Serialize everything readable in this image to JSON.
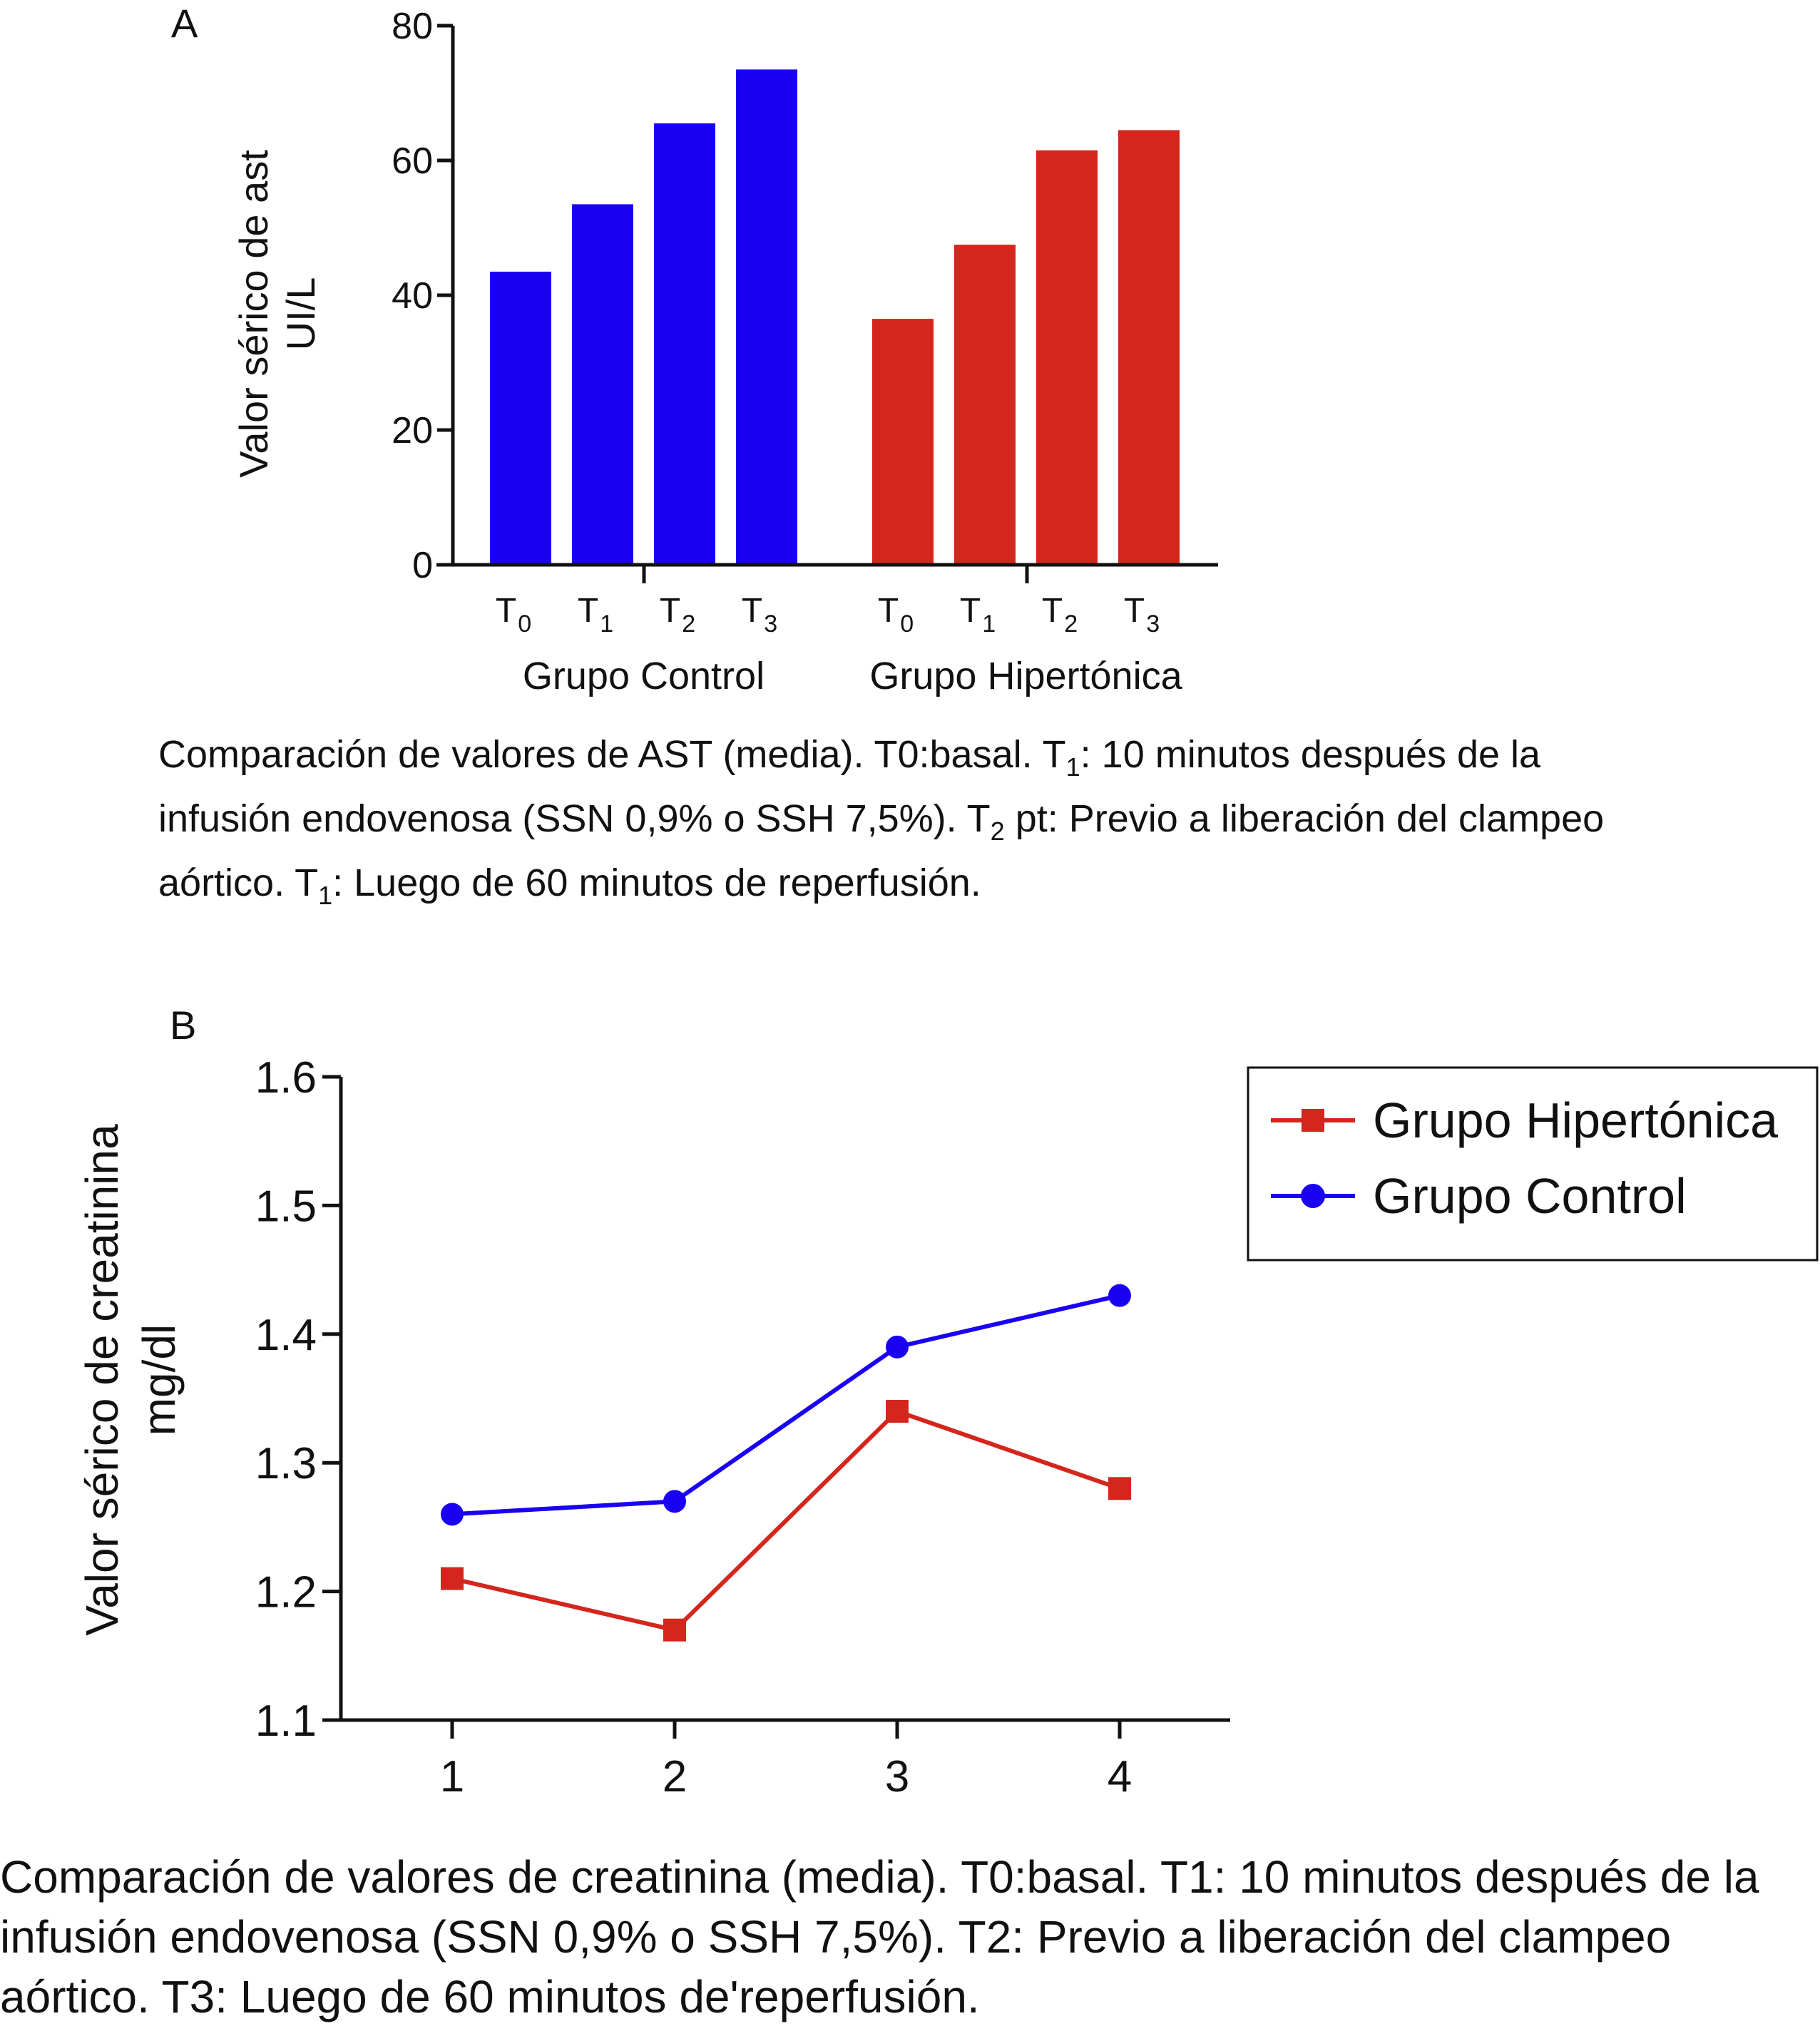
{
  "chart_data": [
    {
      "type": "bar",
      "panel_label": "A",
      "ylabel_line1": "Valor sérico de ast",
      "ylabel_line2": "UI/L",
      "ylim": [
        0,
        80
      ],
      "yticks": [
        "0",
        "20",
        "40",
        "60",
        "80"
      ],
      "groups": [
        {
          "label": "Grupo Control",
          "color": "#1a00f2",
          "categories": [
            {
              "base": "T",
              "sub": "0"
            },
            {
              "base": "T",
              "sub": "1"
            },
            {
              "base": "T",
              "sub": "2"
            },
            {
              "base": "T",
              "sub": "3"
            }
          ],
          "values": [
            43.5,
            53.5,
            65.5,
            73.5
          ]
        },
        {
          "label": "Grupo Hipertónica",
          "color": "#d4261c",
          "categories": [
            {
              "base": "T",
              "sub": "0"
            },
            {
              "base": "T",
              "sub": "1"
            },
            {
              "base": "T",
              "sub": "2"
            },
            {
              "base": "T",
              "sub": "3"
            }
          ],
          "values": [
            36.5,
            47.5,
            61.5,
            64.5
          ]
        }
      ]
    },
    {
      "type": "line",
      "panel_label": "B",
      "ylabel_line1": "Valor sérico de creatinina",
      "ylabel_line2": "mg/dl",
      "x": [
        1,
        2,
        3,
        4
      ],
      "xticks": [
        "1",
        "2",
        "3",
        "4"
      ],
      "ylim": [
        1.1,
        1.6
      ],
      "yticks": [
        "1.1",
        "1.2",
        "1.3",
        "1.4",
        "1.5",
        "1.6"
      ],
      "legend_position": "top-right",
      "series": [
        {
          "name": "Grupo Hipertónica",
          "marker": "square",
          "color": "#d4261c",
          "values": [
            1.21,
            1.17,
            1.34,
            1.28
          ]
        },
        {
          "name": "Grupo Control",
          "marker": "circle",
          "color": "#1a00f2",
          "values": [
            1.26,
            1.27,
            1.39,
            1.43
          ]
        }
      ]
    }
  ],
  "captions": {
    "a": {
      "line1_a": "Comparación de valores de AST (media). T0:basal. T",
      "line1_sub": "1",
      "line1_b": ": 10 minutos después de la",
      "line2_a": "infusión endovenosa (SSN 0,9% o SSH 7,5%). T",
      "line2_sub": "2",
      "line2_b": " pt: Previo a liberación del clampeo",
      "line3_a": "aórtico. T",
      "line3_sub": "1",
      "line3_b": ": Luego de 60 minutos de reperfusión."
    },
    "b": "Comparación de valores de creatinina (media). T0:basal. T1: 10 minutos después de la infusión endovenosa (SSN 0,9% o SSH 7,5%). T2: Previo a liberación del clampeo aórtico. T3: Luego de 60 minutos de'reperfusión."
  }
}
